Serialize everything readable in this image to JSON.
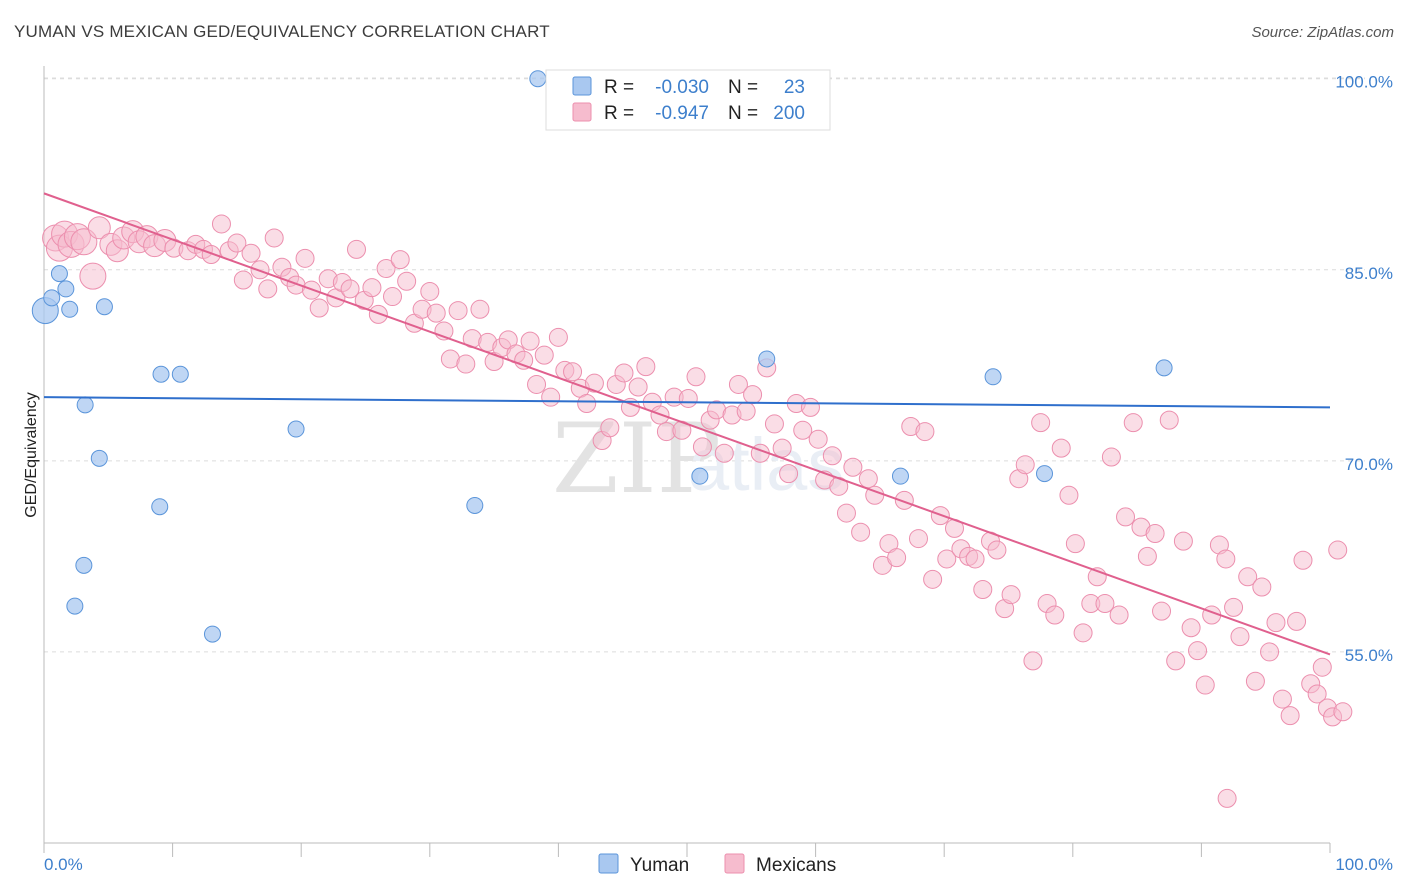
{
  "title": "YUMAN VS MEXICAN GED/EQUIVALENCY CORRELATION CHART",
  "source": "Source: ZipAtlas.com",
  "watermark": {
    "zip": "ZIP",
    "atlas": "atlas"
  },
  "chart_data": {
    "type": "scatter",
    "title": "YUMAN VS MEXICAN GED/EQUIVALENCY CORRELATION CHART",
    "xlabel": "",
    "ylabel": "GED/Equivalency",
    "xlim": [
      0,
      100
    ],
    "ylim": [
      40,
      101
    ],
    "x_tick_labels": [
      "0.0%",
      "100.0%"
    ],
    "y_ticks": [
      55,
      70,
      85,
      100
    ],
    "y_tick_labels": [
      "55.0%",
      "70.0%",
      "85.0%",
      "100.0%"
    ],
    "grid": true,
    "legend_position": "top-center",
    "series": [
      {
        "name": "Yuman",
        "color": "#a9c8f0",
        "line_color": "#2f6fcc",
        "R": "-0.030",
        "N": "23",
        "trend": {
          "x": [
            0,
            100
          ],
          "y": [
            75.0,
            74.2
          ]
        },
        "points": [
          [
            0.1,
            81.8
          ],
          [
            0.6,
            82.8
          ],
          [
            1.2,
            84.7
          ],
          [
            1.7,
            83.5
          ],
          [
            2.0,
            81.9
          ],
          [
            3.2,
            74.4
          ],
          [
            4.3,
            70.2
          ],
          [
            4.7,
            82.1
          ],
          [
            3.1,
            61.8
          ],
          [
            2.4,
            58.6
          ],
          [
            9.1,
            76.8
          ],
          [
            10.6,
            76.8
          ],
          [
            9.0,
            66.4
          ],
          [
            13.1,
            56.4
          ],
          [
            19.6,
            72.5
          ],
          [
            33.5,
            66.5
          ],
          [
            38.4,
            100.0
          ],
          [
            51.0,
            68.8
          ],
          [
            56.2,
            78.0
          ],
          [
            66.6,
            68.8
          ],
          [
            73.8,
            76.6
          ],
          [
            77.8,
            69.0
          ],
          [
            87.1,
            77.3
          ]
        ]
      },
      {
        "name": "Mexicans",
        "color": "#f6bcce",
        "line_color": "#e0608e",
        "R": "-0.947",
        "N": "200",
        "trend": {
          "x": [
            0,
            100
          ],
          "y": [
            91.0,
            54.8
          ]
        },
        "points": [
          [
            0.9,
            87.5
          ],
          [
            1.2,
            86.7
          ],
          [
            1.6,
            87.8
          ],
          [
            2.1,
            87.0
          ],
          [
            2.6,
            87.6
          ],
          [
            3.1,
            87.2
          ],
          [
            3.8,
            84.5
          ],
          [
            4.3,
            88.3
          ],
          [
            5.2,
            87.0
          ],
          [
            5.7,
            86.5
          ],
          [
            6.2,
            87.5
          ],
          [
            6.9,
            88.0
          ],
          [
            7.4,
            87.2
          ],
          [
            8.0,
            87.6
          ],
          [
            8.6,
            86.9
          ],
          [
            9.4,
            87.3
          ],
          [
            10.1,
            86.7
          ],
          [
            11.2,
            86.5
          ],
          [
            11.8,
            87.0
          ],
          [
            12.4,
            86.6
          ],
          [
            13.0,
            86.2
          ],
          [
            13.8,
            88.6
          ],
          [
            14.4,
            86.5
          ],
          [
            15.0,
            87.1
          ],
          [
            15.5,
            84.2
          ],
          [
            16.1,
            86.3
          ],
          [
            16.8,
            85.0
          ],
          [
            17.4,
            83.5
          ],
          [
            17.9,
            87.5
          ],
          [
            18.5,
            85.2
          ],
          [
            19.1,
            84.4
          ],
          [
            19.6,
            83.8
          ],
          [
            20.3,
            85.9
          ],
          [
            20.8,
            83.4
          ],
          [
            21.4,
            82.0
          ],
          [
            22.1,
            84.3
          ],
          [
            22.7,
            82.8
          ],
          [
            23.2,
            84.0
          ],
          [
            23.8,
            83.5
          ],
          [
            24.3,
            86.6
          ],
          [
            24.9,
            82.6
          ],
          [
            25.5,
            83.6
          ],
          [
            26.0,
            81.5
          ],
          [
            26.6,
            85.1
          ],
          [
            27.1,
            82.9
          ],
          [
            27.7,
            85.8
          ],
          [
            28.2,
            84.1
          ],
          [
            28.8,
            80.8
          ],
          [
            29.4,
            81.9
          ],
          [
            30.0,
            83.3
          ],
          [
            30.5,
            81.6
          ],
          [
            31.1,
            80.2
          ],
          [
            31.6,
            78.0
          ],
          [
            32.2,
            81.8
          ],
          [
            32.8,
            77.6
          ],
          [
            33.3,
            79.6
          ],
          [
            33.9,
            81.9
          ],
          [
            34.5,
            79.3
          ],
          [
            35.0,
            77.8
          ],
          [
            35.6,
            78.9
          ],
          [
            36.1,
            79.5
          ],
          [
            36.7,
            78.4
          ],
          [
            37.3,
            77.9
          ],
          [
            37.8,
            79.4
          ],
          [
            38.3,
            76.0
          ],
          [
            38.9,
            78.3
          ],
          [
            39.4,
            75.0
          ],
          [
            40.0,
            79.7
          ],
          [
            40.5,
            77.1
          ],
          [
            41.1,
            77.0
          ],
          [
            41.7,
            75.7
          ],
          [
            42.2,
            74.5
          ],
          [
            42.8,
            76.1
          ],
          [
            43.4,
            71.6
          ],
          [
            44.0,
            72.6
          ],
          [
            44.5,
            76.0
          ],
          [
            45.1,
            76.9
          ],
          [
            45.6,
            74.2
          ],
          [
            46.2,
            75.8
          ],
          [
            46.8,
            77.4
          ],
          [
            47.3,
            74.6
          ],
          [
            47.9,
            73.6
          ],
          [
            48.4,
            72.3
          ],
          [
            49.0,
            75.0
          ],
          [
            49.6,
            72.4
          ],
          [
            50.1,
            74.9
          ],
          [
            50.7,
            76.6
          ],
          [
            51.2,
            71.1
          ],
          [
            51.8,
            73.2
          ],
          [
            52.3,
            74.0
          ],
          [
            52.9,
            70.6
          ],
          [
            53.5,
            73.6
          ],
          [
            54.0,
            76.0
          ],
          [
            54.6,
            73.9
          ],
          [
            55.1,
            75.2
          ],
          [
            55.7,
            70.6
          ],
          [
            56.2,
            77.3
          ],
          [
            56.8,
            72.9
          ],
          [
            57.4,
            71.0
          ],
          [
            57.9,
            69.0
          ],
          [
            58.5,
            74.5
          ],
          [
            59.0,
            72.4
          ],
          [
            59.6,
            74.2
          ],
          [
            60.2,
            71.7
          ],
          [
            60.7,
            68.5
          ],
          [
            61.3,
            70.4
          ],
          [
            61.8,
            68.0
          ],
          [
            62.4,
            65.9
          ],
          [
            62.9,
            69.5
          ],
          [
            63.5,
            64.4
          ],
          [
            64.1,
            68.6
          ],
          [
            64.6,
            67.3
          ],
          [
            65.2,
            61.8
          ],
          [
            65.7,
            63.5
          ],
          [
            66.3,
            62.4
          ],
          [
            66.9,
            66.9
          ],
          [
            67.4,
            72.7
          ],
          [
            68.0,
            63.9
          ],
          [
            68.5,
            72.3
          ],
          [
            69.1,
            60.7
          ],
          [
            69.7,
            65.7
          ],
          [
            70.2,
            62.3
          ],
          [
            70.8,
            64.7
          ],
          [
            71.3,
            63.1
          ],
          [
            71.9,
            62.5
          ],
          [
            72.4,
            62.3
          ],
          [
            73.0,
            59.9
          ],
          [
            73.6,
            63.7
          ],
          [
            74.1,
            63.0
          ],
          [
            74.7,
            58.4
          ],
          [
            75.2,
            59.5
          ],
          [
            75.8,
            68.6
          ],
          [
            76.3,
            69.7
          ],
          [
            76.9,
            54.3
          ],
          [
            77.5,
            73.0
          ],
          [
            78.0,
            58.8
          ],
          [
            78.6,
            57.9
          ],
          [
            79.1,
            71.0
          ],
          [
            79.7,
            67.3
          ],
          [
            80.2,
            63.5
          ],
          [
            80.8,
            56.5
          ],
          [
            81.4,
            58.8
          ],
          [
            81.9,
            60.9
          ],
          [
            82.5,
            58.8
          ],
          [
            83.0,
            70.3
          ],
          [
            83.6,
            57.9
          ],
          [
            84.1,
            65.6
          ],
          [
            84.7,
            73.0
          ],
          [
            85.3,
            64.8
          ],
          [
            85.8,
            62.5
          ],
          [
            86.4,
            64.3
          ],
          [
            86.9,
            58.2
          ],
          [
            87.5,
            73.2
          ],
          [
            88.0,
            54.3
          ],
          [
            88.6,
            63.7
          ],
          [
            89.2,
            56.9
          ],
          [
            89.7,
            55.1
          ],
          [
            90.3,
            52.4
          ],
          [
            90.8,
            57.9
          ],
          [
            91.4,
            63.4
          ],
          [
            91.9,
            62.3
          ],
          [
            92.5,
            58.5
          ],
          [
            93.0,
            56.2
          ],
          [
            93.6,
            60.9
          ],
          [
            94.2,
            52.7
          ],
          [
            94.7,
            60.1
          ],
          [
            95.3,
            55.0
          ],
          [
            95.8,
            57.3
          ],
          [
            96.3,
            51.3
          ],
          [
            96.9,
            50.0
          ],
          [
            97.4,
            57.4
          ],
          [
            97.9,
            62.2
          ],
          [
            98.5,
            52.5
          ],
          [
            99.0,
            51.7
          ],
          [
            99.4,
            53.8
          ],
          [
            99.8,
            50.6
          ],
          [
            100.2,
            49.9
          ],
          [
            100.6,
            63.0
          ],
          [
            101.0,
            50.3
          ],
          [
            92.0,
            43.5
          ]
        ]
      }
    ]
  },
  "legend": {
    "r_label": "R =",
    "n_label": "N =",
    "items": [
      {
        "r_value": "-0.030",
        "n_value": "23"
      },
      {
        "r_value": "-0.947",
        "n_value": "200"
      }
    ]
  },
  "bottom_legend": {
    "items": [
      "Yuman",
      "Mexicans"
    ]
  }
}
